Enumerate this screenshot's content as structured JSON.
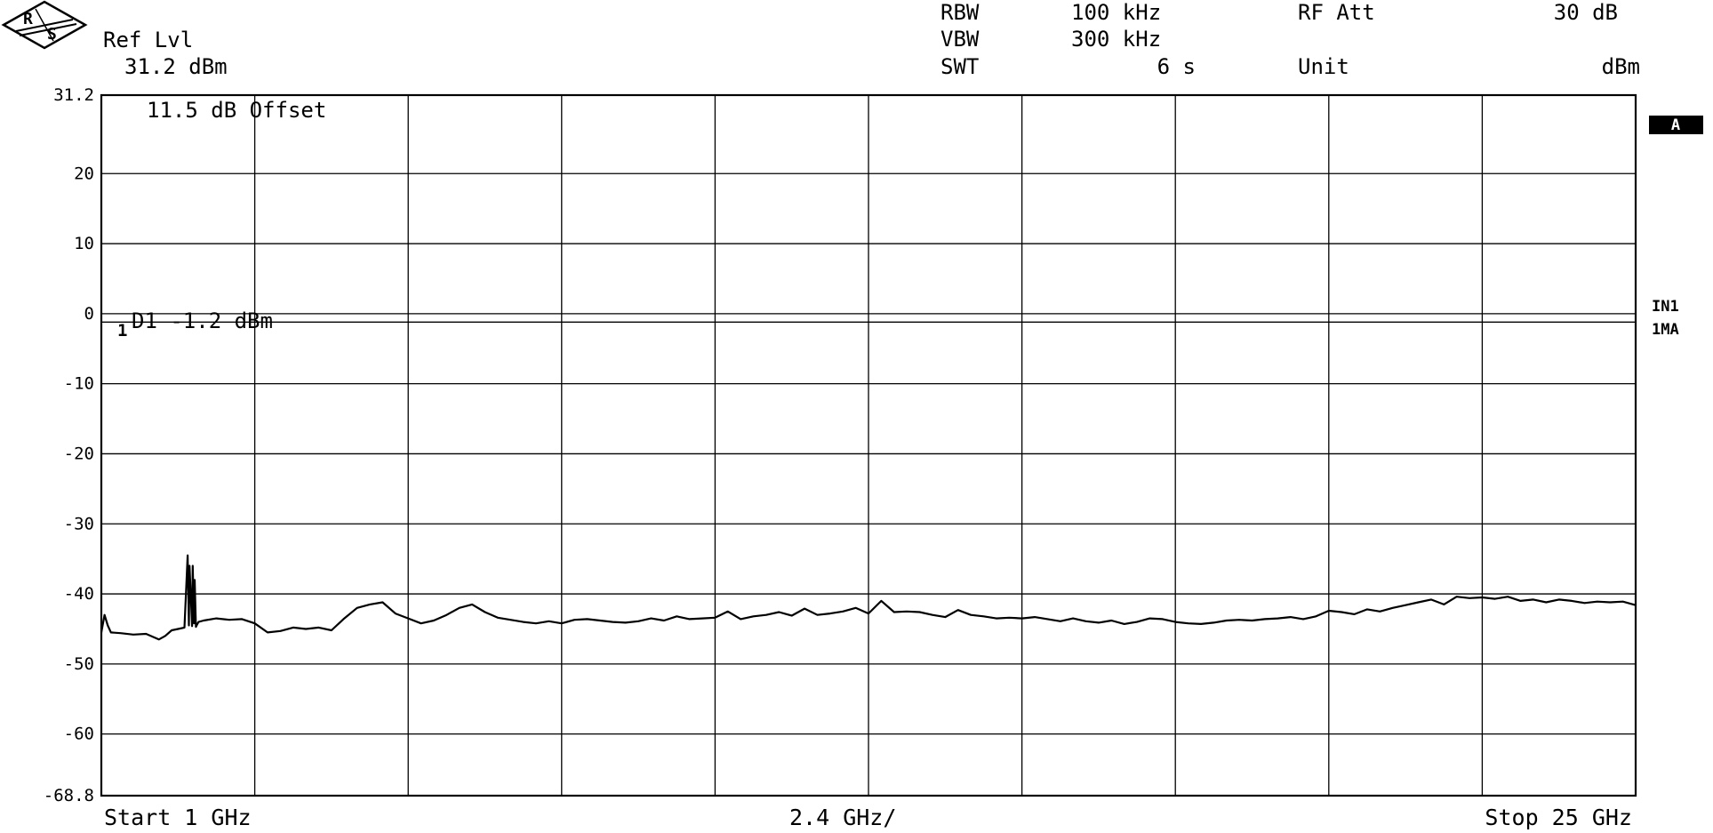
{
  "header": {
    "ref_lvl_label": "Ref Lvl",
    "ref_lvl_value": "31.2 dBm",
    "rbw_label": "RBW",
    "rbw_value": "100 kHz",
    "vbw_label": "VBW",
    "vbw_value": "300 kHz",
    "swt_label": "SWT",
    "swt_value": "6 s",
    "rf_att_label": "RF Att",
    "rf_att_value": "30 dB",
    "unit_label": "Unit",
    "unit_value": "dBm"
  },
  "annotations": {
    "offset": "11.5 dB Offset",
    "display_line": "D1 -1.2 dBm",
    "marker_label": "1"
  },
  "side_labels": {
    "trace_a": "A",
    "in1": "IN1",
    "ma1": "1MA"
  },
  "footer": {
    "start": "Start 1 GHz",
    "div": "2.4 GHz/",
    "stop": "Stop 25 GHz"
  },
  "colors": {
    "ink": "#000000",
    "background": "#ffffff"
  },
  "chart_data": {
    "type": "line",
    "xlabel": "",
    "ylabel": "",
    "x_unit": "GHz",
    "y_unit": "dBm",
    "xlim": [
      1,
      25
    ],
    "ylim": [
      -68.8,
      31.2
    ],
    "yticks": [
      31.2,
      20,
      10,
      0,
      -10,
      -20,
      -30,
      -40,
      -50,
      -60,
      -68.8
    ],
    "ytick_labels": [
      "31.2",
      "20",
      "10",
      "0",
      "-10",
      "-20",
      "-30",
      "-40",
      "-50",
      "-60",
      "-68.8"
    ],
    "grid": true,
    "reference_line": {
      "label": "D1",
      "value": -1.2
    },
    "series": [
      {
        "name": "",
        "x": [
          1.0,
          1.05,
          1.1,
          1.15,
          1.3,
          1.5,
          1.7,
          1.9,
          2.0,
          2.1,
          2.2,
          2.3,
          2.35,
          2.37,
          2.38,
          2.42,
          2.43,
          2.45,
          2.46,
          2.48,
          2.49,
          2.52,
          2.6,
          2.8,
          3.0,
          3.2,
          3.4,
          3.6,
          3.8,
          4.0,
          4.2,
          4.4,
          4.6,
          4.8,
          5.0,
          5.2,
          5.4,
          5.6,
          5.8,
          6.0,
          6.2,
          6.4,
          6.6,
          6.8,
          7.0,
          7.2,
          7.4,
          7.6,
          7.8,
          8.0,
          8.2,
          8.4,
          8.6,
          8.8,
          9.0,
          9.2,
          9.4,
          9.6,
          9.8,
          10.0,
          10.2,
          10.4,
          10.6,
          10.8,
          11.0,
          11.2,
          11.4,
          11.6,
          11.8,
          12.0,
          12.2,
          12.4,
          12.6,
          12.8,
          13.0,
          13.2,
          13.4,
          13.6,
          13.8,
          14.0,
          14.2,
          14.4,
          14.6,
          14.8,
          15.0,
          15.2,
          15.4,
          15.6,
          15.8,
          16.0,
          16.2,
          16.4,
          16.6,
          16.8,
          17.0,
          17.2,
          17.4,
          17.6,
          17.8,
          18.0,
          18.2,
          18.4,
          18.6,
          18.8,
          19.0,
          19.2,
          19.4,
          19.6,
          19.8,
          20.0,
          20.2,
          20.4,
          20.6,
          20.8,
          21.0,
          21.2,
          21.4,
          21.6,
          21.8,
          22.0,
          22.2,
          22.4,
          22.6,
          22.8,
          23.0,
          23.2,
          23.4,
          23.6,
          23.8,
          24.0,
          24.2,
          24.4,
          24.6,
          24.8,
          25.0
        ],
        "y": [
          -45.5,
          -43.0,
          -44.5,
          -45.5,
          -45.6,
          -45.8,
          -45.7,
          -46.5,
          -46.0,
          -45.2,
          -45.0,
          -44.8,
          -34.5,
          -44.5,
          -36.0,
          -44.6,
          -36.0,
          -44.2,
          -38.0,
          -44.7,
          -44.5,
          -44.0,
          -43.8,
          -43.5,
          -43.7,
          -43.6,
          -44.2,
          -45.5,
          -45.3,
          -44.8,
          -45.0,
          -44.8,
          -45.2,
          -43.5,
          -42.0,
          -41.5,
          -41.2,
          -42.8,
          -43.5,
          -44.2,
          -43.8,
          -43.0,
          -42.0,
          -41.5,
          -42.6,
          -43.4,
          -43.7,
          -44.0,
          -44.2,
          -43.9,
          -44.2,
          -43.7,
          -43.6,
          -43.8,
          -44.0,
          -44.1,
          -43.9,
          -43.5,
          -43.8,
          -43.2,
          -43.6,
          -43.5,
          -43.4,
          -42.5,
          -43.6,
          -43.2,
          -43.0,
          -42.6,
          -43.1,
          -42.1,
          -43.0,
          -42.8,
          -42.5,
          -42.0,
          -42.8,
          -41.0,
          -42.6,
          -42.5,
          -42.6,
          -43.0,
          -43.3,
          -42.3,
          -43.0,
          -43.2,
          -43.5,
          -43.4,
          -43.5,
          -43.3,
          -43.6,
          -43.9,
          -43.5,
          -43.9,
          -44.1,
          -43.8,
          -44.3,
          -44.0,
          -43.5,
          -43.6,
          -44.0,
          -44.2,
          -44.3,
          -44.1,
          -43.8,
          -43.7,
          -43.8,
          -43.6,
          -43.5,
          -43.3,
          -43.6,
          -43.2,
          -42.4,
          -42.6,
          -42.9,
          -42.2,
          -42.5,
          -42.0,
          -41.6,
          -41.2,
          -40.8,
          -41.5,
          -40.4,
          -40.6,
          -40.5,
          -40.7,
          -40.4,
          -41.0,
          -40.8,
          -41.2,
          -40.8,
          -41.0,
          -41.3,
          -41.1,
          -41.2,
          -41.1,
          -41.6
        ]
      }
    ]
  }
}
